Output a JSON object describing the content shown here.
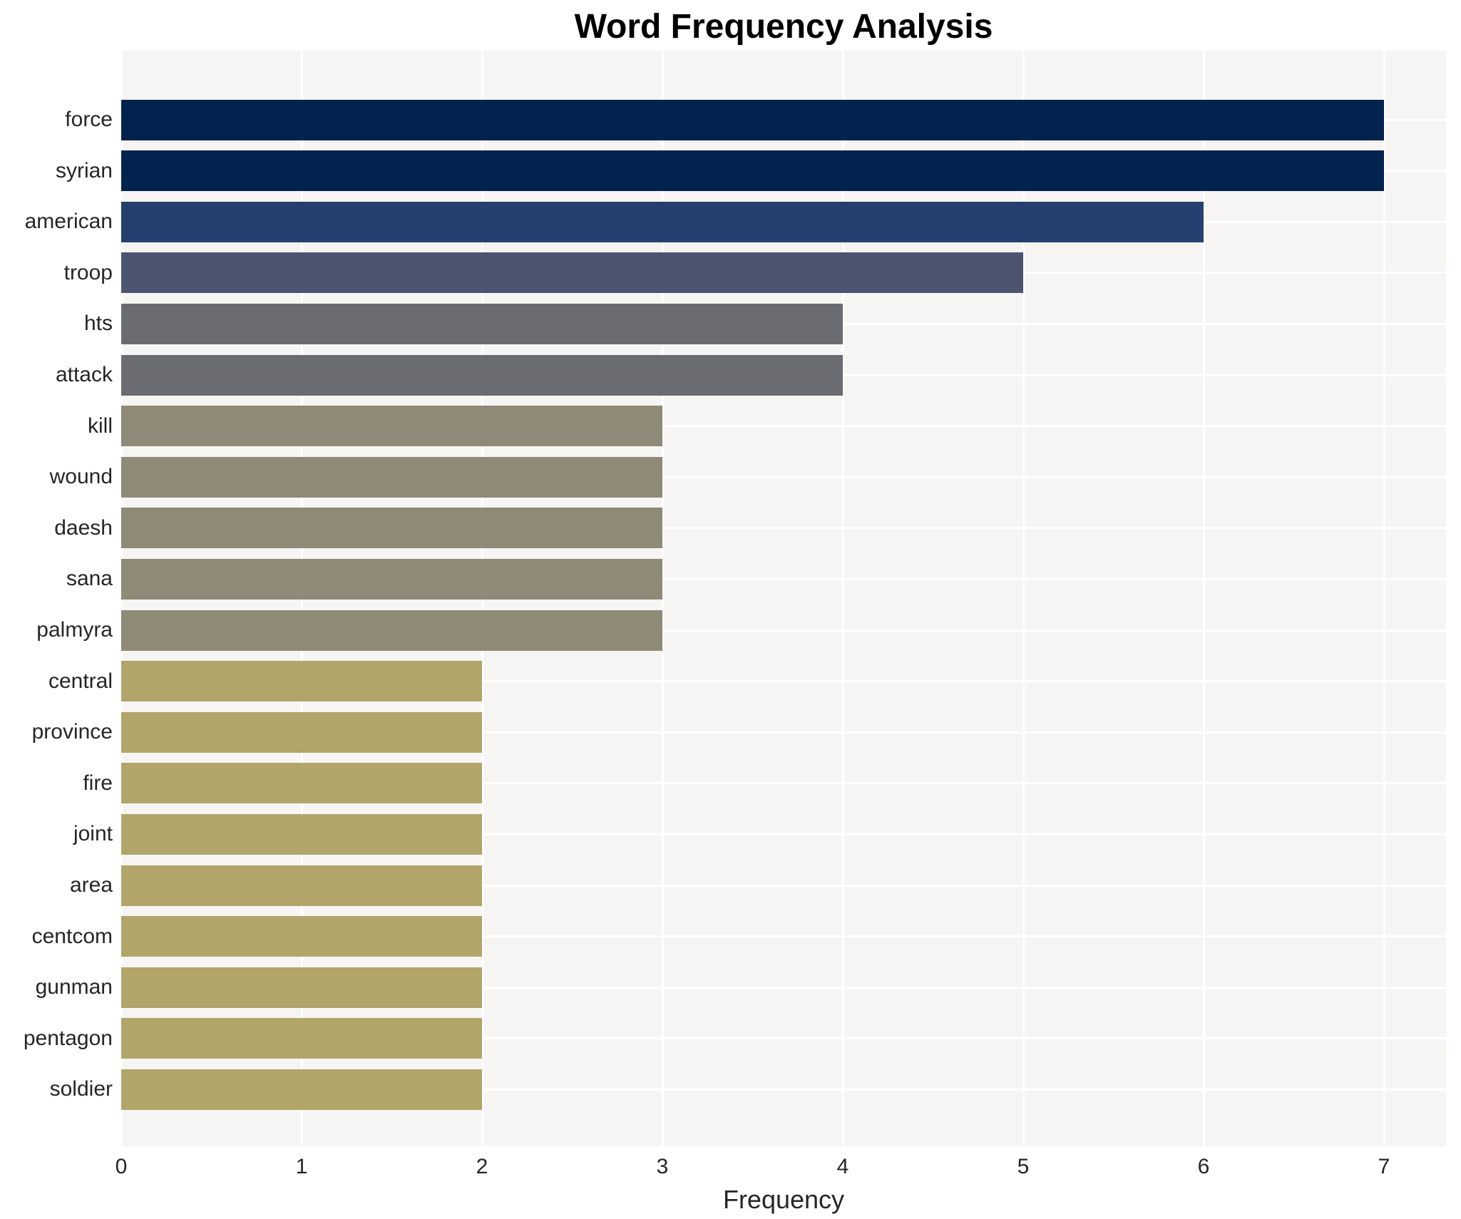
{
  "title": "Word Frequency Analysis",
  "xlabel": "Frequency",
  "chart_data": {
    "type": "bar",
    "orientation": "horizontal",
    "title": "Word Frequency Analysis",
    "xlabel": "Frequency",
    "ylabel": "",
    "categories": [
      "force",
      "syrian",
      "american",
      "troop",
      "hts",
      "attack",
      "kill",
      "wound",
      "daesh",
      "sana",
      "palmyra",
      "central",
      "province",
      "fire",
      "joint",
      "area",
      "centcom",
      "gunman",
      "pentagon",
      "soldier"
    ],
    "values": [
      7,
      7,
      6,
      5,
      4,
      4,
      3,
      3,
      3,
      3,
      3,
      2,
      2,
      2,
      2,
      2,
      2,
      2,
      2,
      2
    ],
    "x_ticks": [
      "0",
      "1",
      "2",
      "3",
      "4",
      "5",
      "6",
      "7"
    ],
    "xlim": [
      0,
      7.34
    ],
    "grid": true,
    "legend": false,
    "colors_by_value": {
      "7": "#03234f",
      "6": "#25406e",
      "5": "#4d5470",
      "4": "#6b6c72",
      "3": "#8f8977",
      "2": "#b2a56a"
    },
    "plot_bg_color": "#f6f5f3",
    "grid_color": "#ffffff",
    "text_color": "#262626",
    "title_color": "#000000"
  }
}
